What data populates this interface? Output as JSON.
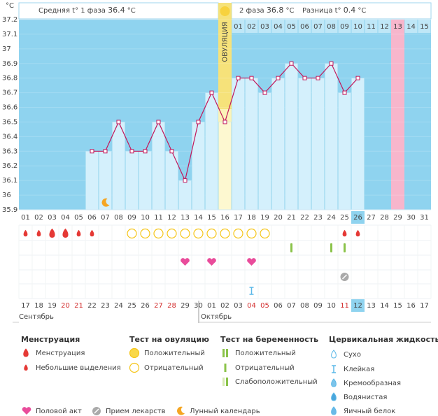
{
  "chart_data": {
    "type": "bar-line",
    "y_unit": "°C",
    "header": {
      "phase1_label": "Средняя t° 1 фаза",
      "phase1_value": 36.4,
      "phase2_label": "2 фаза",
      "phase2_value": 36.8,
      "diff_label": "Разница t°",
      "diff_value": 0.4,
      "unit": "°C"
    },
    "ovulation_label": "ОВУЛЯЦИЯ",
    "ovulation_index": 15,
    "highlight_index": 28,
    "today_index": 25,
    "categories": [
      "01",
      "02",
      "03",
      "04",
      "05",
      "06",
      "07",
      "08",
      "09",
      "10",
      "11",
      "12",
      "13",
      "14",
      "15",
      "16",
      "17",
      "18",
      "19",
      "20",
      "21",
      "22",
      "23",
      "24",
      "25",
      "26",
      "27",
      "28",
      "29",
      "30",
      "31"
    ],
    "phase2_day_labels": [
      "01",
      "02",
      "03",
      "04",
      "05",
      "06",
      "07",
      "08",
      "09",
      "10",
      "11",
      "12",
      "13",
      "14",
      "15"
    ],
    "dates": [
      "17",
      "18",
      "19",
      "20",
      "21",
      "22",
      "23",
      "24",
      "25",
      "26",
      "27",
      "28",
      "29",
      "30",
      "01",
      "02",
      "03",
      "04",
      "05",
      "06",
      "07",
      "08",
      "09",
      "10",
      "11",
      "12",
      "13",
      "14",
      "15",
      "16",
      "17"
    ],
    "weekend_indices": [
      3,
      4,
      10,
      11,
      17,
      18,
      24
    ],
    "months": [
      {
        "label": "Сентябрь",
        "index": 0
      },
      {
        "label": "Октябрь",
        "index": 14
      }
    ],
    "values": [
      null,
      null,
      null,
      null,
      null,
      36.3,
      36.3,
      36.5,
      36.3,
      36.3,
      36.5,
      36.3,
      36.1,
      36.5,
      36.7,
      36.5,
      36.8,
      36.8,
      36.7,
      36.8,
      36.9,
      36.8,
      36.8,
      36.9,
      36.7,
      36.8,
      null,
      null,
      null,
      null,
      null
    ],
    "color": "#c2185b",
    "bar_color": "#d4f0fc",
    "ylim": [
      35.9,
      37.2
    ],
    "yticks": [
      35.9,
      36,
      36.1,
      36.2,
      36.3,
      36.4,
      36.5,
      36.6,
      36.7,
      36.8,
      36.9,
      37,
      37.1,
      37.2
    ],
    "grid": true,
    "events": {
      "menstruation": [
        0,
        1,
        2,
        3,
        4,
        5,
        24,
        25
      ],
      "menstruation_heavy": [
        2,
        3
      ],
      "ovulation_test_negative": [
        8,
        9,
        10,
        11,
        12,
        13,
        14,
        15,
        16,
        17,
        18
      ],
      "pregnancy_test_negative": [
        20,
        23,
        24
      ],
      "intercourse": [
        12,
        14,
        17
      ],
      "medicine": [
        24
      ],
      "cervical_sticky": [
        17
      ],
      "moon": [
        6
      ]
    }
  },
  "legend": {
    "sections": [
      {
        "title": "Менструация",
        "items": [
          "Менструация",
          "Небольшие выделения"
        ]
      },
      {
        "title": "Тест на овуляцию",
        "items": [
          "Положительный",
          "Отрицательный"
        ]
      },
      {
        "title": "Тест на беременность",
        "items": [
          "Положительный",
          "Отрицательный",
          "Слабоположительный"
        ]
      },
      {
        "title": "Цервикальная жидкость",
        "items": [
          "Сухо",
          "Клейкая",
          "Кремообразная",
          "Водянистая",
          "Яичный белок"
        ]
      }
    ],
    "bottom": [
      "Половой акт",
      "Прием лекарств",
      "Лунный календарь"
    ]
  }
}
